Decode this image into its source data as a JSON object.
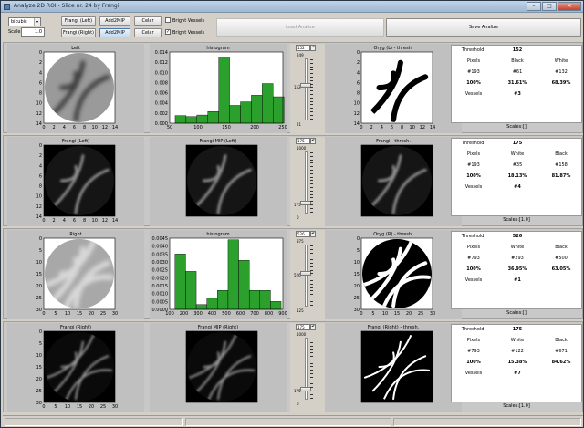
{
  "window": {
    "title": "Analyze 2D ROI - Slice nr. 24 by Frangi",
    "min": "–",
    "max": "□",
    "close": "✕"
  },
  "toolbar": {
    "interp": "bicubic",
    "interp_arrow": "▾",
    "scale_label": "Scale:",
    "scale_value": "1.0",
    "frangi_left": "Frangi (Left)",
    "frangi_right": "Frangi (Right)",
    "add2mip_1": "Add2MIP",
    "add2mip_2": "Add2MIP",
    "celar_1": "Celar",
    "celar_2": "Celar",
    "bright_1": "Bright Vessels",
    "bright_2": "Bright Vessels",
    "bright_1_checked": false,
    "bright_2_checked": true,
    "load": "Load Analize",
    "save": "Save Analize"
  },
  "rows": [
    {
      "p1": {
        "title": "Left",
        "kind": "img",
        "variant": "smooth",
        "yticks": [
          "0",
          "2",
          "4",
          "6",
          "8",
          "10",
          "12",
          "14"
        ],
        "xticks": [
          "0",
          "2",
          "4",
          "6",
          "8",
          "10",
          "12",
          "14"
        ]
      },
      "p2": {
        "title": "histogram",
        "kind": "hist",
        "yticks": [
          "0.014",
          "0.012",
          "0.010",
          "0.008",
          "0.006",
          "0.004",
          "0.002",
          "0.000"
        ],
        "xticks": [
          "50",
          "100",
          "150",
          "200",
          "250"
        ]
      },
      "p3": {
        "title": "Frangi MIP (Left)"
      },
      "p4": {
        "title": "Oryg (L) - thresh.",
        "kind": "img",
        "variant": "thresh",
        "yticks": [
          "0",
          "2",
          "4",
          "6",
          "8",
          "10",
          "12",
          "14"
        ],
        "xticks": [
          "0",
          "2",
          "4",
          "6",
          "8",
          "10",
          "12",
          "14"
        ]
      },
      "slider": {
        "top": "152",
        "max": "249",
        "mid": "152",
        "min": "21",
        "level": 0.57
      },
      "info": {
        "h1": "Threshold:",
        "thr": "152",
        "c1": "Pixels",
        "c2": "Black",
        "c3": "White",
        "v1": "#193",
        "v2": "#61",
        "v3": "#132",
        "p1": "100%",
        "p2": "31.61%",
        "p3": "68.39%",
        "vl": "Vessels",
        "vn": "#3",
        "scales": "Scales:[]"
      }
    },
    {
      "p1": {
        "title": "Frangi (Left)",
        "kind": "img",
        "variant": "frangi",
        "yticks": [
          "0",
          "2",
          "4",
          "6",
          "8",
          "10",
          "12",
          "14"
        ],
        "xticks": [
          "0",
          "2",
          "4",
          "6",
          "8",
          "10",
          "12",
          "14"
        ]
      },
      "p2": {
        "title": "Frangi MIP (Left)",
        "kind": "img",
        "variant": "frangi",
        "yticks": [],
        "xticks": []
      },
      "p4": {
        "title": "Frangi - thresh.",
        "kind": "img",
        "variant": "frangi",
        "yticks": [],
        "xticks": []
      },
      "slider": {
        "top": "175",
        "max": "1000",
        "mid": "175",
        "min": "0",
        "level": 0.17
      },
      "info": {
        "h1": "Threshold:",
        "thr": "175",
        "c1": "Pixels",
        "c2": "White",
        "c3": "Black",
        "v1": "#193",
        "v2": "#35",
        "v3": "#158",
        "p1": "100%",
        "p2": "18.13%",
        "p3": "81.87%",
        "vl": "Vessels",
        "vn": "#4",
        "scales": "Scales:[1.0]"
      }
    },
    {
      "p1": {
        "title": "Right",
        "kind": "img",
        "variant": "right",
        "yticks": [
          "0",
          "5",
          "10",
          "15",
          "20",
          "25",
          "30"
        ],
        "xticks": [
          "0",
          "5",
          "10",
          "15",
          "20",
          "25",
          "30"
        ]
      },
      "p2": {
        "title": "histogram",
        "kind": "hist2",
        "yticks": [
          "0.0045",
          "0.0040",
          "0.0035",
          "0.0030",
          "0.0025",
          "0.0020",
          "0.0015",
          "0.0010",
          "0.0005",
          "0.0000"
        ],
        "xticks": [
          "100",
          "200",
          "300",
          "400",
          "500",
          "600",
          "700",
          "800",
          "900"
        ]
      },
      "p4": {
        "title": "Oryg (R) - thresh.",
        "kind": "img",
        "variant": "rthresh",
        "yticks": [
          "0",
          "5",
          "10",
          "15",
          "20",
          "25",
          "30"
        ],
        "xticks": [
          "0",
          "5",
          "10",
          "15",
          "20",
          "25",
          "30"
        ]
      },
      "slider": {
        "top": "526",
        "max": "875",
        "mid": "526",
        "min": "125",
        "level": 0.54
      },
      "info": {
        "h1": "Threshold:",
        "thr": "526",
        "c1": "Pixels",
        "c2": "White",
        "c3": "Black",
        "v1": "#793",
        "v2": "#293",
        "v3": "#500",
        "p1": "100%",
        "p2": "36.95%",
        "p3": "63.05%",
        "vl": "Vessels",
        "vn": "#1",
        "scales": "Scales:[]"
      }
    },
    {
      "p1": {
        "title": "Frangi (Right)",
        "kind": "img",
        "variant": "rfrangi",
        "yticks": [
          "0",
          "5",
          "10",
          "15",
          "20",
          "25",
          "30"
        ],
        "xticks": [
          "0",
          "5",
          "10",
          "15",
          "20",
          "25",
          "30"
        ]
      },
      "p2": {
        "title": "Frangi MIP (Right)",
        "kind": "img",
        "variant": "rfrangi",
        "yticks": [],
        "xticks": []
      },
      "p4": {
        "title": "Frangi (Right) - thresh.",
        "kind": "img",
        "variant": "rfthresh",
        "yticks": [],
        "xticks": []
      },
      "slider": {
        "top": "175",
        "max": "1000",
        "mid": "175",
        "min": "0",
        "level": 0.17
      },
      "info": {
        "h1": "Threshold:",
        "thr": "175",
        "c1": "Pixels",
        "c2": "White",
        "c3": "Black",
        "v1": "#793",
        "v2": "#122",
        "v3": "#671",
        "p1": "100%",
        "p2": "15.38%",
        "p3": "84.62%",
        "vl": "Vessels",
        "vn": "#7",
        "scales": "Scales:[1.0]"
      }
    }
  ],
  "chart_data": [
    {
      "type": "bar",
      "title": "histogram",
      "x": [
        25,
        50,
        75,
        100,
        125,
        150,
        175,
        200,
        225,
        250
      ],
      "values": [
        0.0015,
        0.0013,
        0.0016,
        0.0023,
        0.013,
        0.0035,
        0.0042,
        0.0055,
        0.0078,
        0.0052
      ],
      "ylim": [
        0,
        0.014
      ],
      "xlim": [
        0,
        260
      ]
    },
    {
      "type": "bar",
      "title": "histogram",
      "x": [
        175,
        250,
        325,
        400,
        475,
        550,
        625,
        700,
        775,
        850
      ],
      "values": [
        0.0035,
        0.0024,
        0.0003,
        0.0007,
        0.0012,
        0.0044,
        0.0031,
        0.0012,
        0.0012,
        0.0005
      ],
      "ylim": [
        0,
        0.0045
      ],
      "xlim": [
        100,
        900
      ]
    }
  ]
}
